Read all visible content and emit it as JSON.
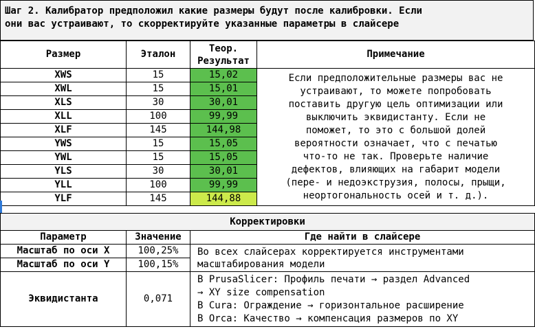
{
  "intro": {
    "text_line1": "Шаг 2. Калибратор предположил какие размеры будут после калибровки. Если",
    "text_line2": "они вас устраивают, то скорректируйте указанные параметры в слайсере"
  },
  "sizes_table": {
    "headers": {
      "size": "Размер",
      "reference": "Эталон",
      "theory_line1": "Теор.",
      "theory_line2": "Результат",
      "note": "Примечание"
    },
    "rows": [
      {
        "size": "XWS",
        "reference": "15",
        "result": "15,02"
      },
      {
        "size": "XWL",
        "reference": "15",
        "result": "15,01"
      },
      {
        "size": "XLS",
        "reference": "30",
        "result": "30,01"
      },
      {
        "size": "XLL",
        "reference": "100",
        "result": "99,99"
      },
      {
        "size": "XLF",
        "reference": "145",
        "result": "144,98"
      },
      {
        "size": "YWS",
        "reference": "15",
        "result": "15,05"
      },
      {
        "size": "YWL",
        "reference": "15",
        "result": "15,05"
      },
      {
        "size": "YLS",
        "reference": "30",
        "result": "30,01"
      },
      {
        "size": "YLL",
        "reference": "100",
        "result": "99,99"
      },
      {
        "size": "YLF",
        "reference": "145",
        "result": "144,88"
      }
    ],
    "note_lines": [
      "Если предположительные размеры вас не",
      "устраивают, то можете попробовать",
      "поставить другую цель оптимизации или",
      "выключить эквидистанту. Если не",
      "поможет, то это с большой долей",
      "вероятности означает, что с печатью",
      "что-то не так. Проверьте наличие",
      "дефектов, влияющих на габарит модели",
      "(пере- и недоэкструзия, полосы, прыщи,",
      "неортогональность осей и т. д.)."
    ],
    "colors": {
      "ok": "#5cbf4e",
      "warn": "#ccea4b"
    }
  },
  "corrections": {
    "title": "Корректировки",
    "headers": {
      "param": "Параметр",
      "value": "Значение",
      "where": "Где найти в слайсере"
    },
    "scale_x": {
      "param": "Масштаб по оси X",
      "value": "100,25%"
    },
    "scale_y": {
      "param": "Масштаб по оси Y",
      "value": "100,15%"
    },
    "scale_note_line1": "Во всех слайсерах корректируется инструментами",
    "scale_note_line2": "масштабирования модели",
    "offset": {
      "param": "Эквидистанта",
      "value": "0,071",
      "lines": [
        "В PrusaSlicer: Профиль печати → раздел Advanced",
        "→ XY size compensation",
        "В Cura: Ограждение → горизонтальное расширение",
        "В Orca: Качество → компенсация размеров по XY"
      ]
    }
  }
}
